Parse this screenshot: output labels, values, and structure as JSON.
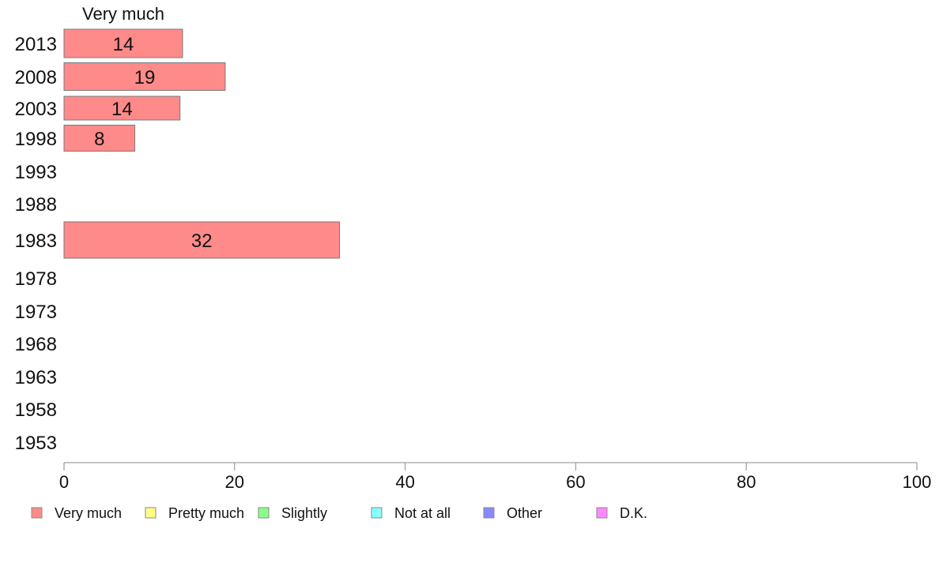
{
  "chart_data": {
    "type": "bar",
    "orientation": "horizontal",
    "stacked": true,
    "category_header": "Very much",
    "categories": [
      "2013",
      "2008",
      "2003",
      "1998",
      "1993",
      "1988",
      "1983",
      "1978",
      "1973",
      "1968",
      "1963",
      "1958",
      "1953"
    ],
    "series": [
      {
        "name": "Very much",
        "color": "#ff8a8a",
        "values": [
          14,
          19,
          14,
          8,
          null,
          null,
          32,
          null,
          null,
          null,
          null,
          null,
          null
        ]
      },
      {
        "name": "Pretty much",
        "color": "#ffff88",
        "values": [
          null,
          null,
          null,
          null,
          null,
          null,
          null,
          null,
          null,
          null,
          null,
          null,
          null
        ]
      },
      {
        "name": "Slightly",
        "color": "#88ff88",
        "values": [
          null,
          null,
          null,
          null,
          null,
          null,
          null,
          null,
          null,
          null,
          null,
          null,
          null
        ]
      },
      {
        "name": "Not at all",
        "color": "#88ffff",
        "values": [
          null,
          null,
          null,
          null,
          null,
          null,
          null,
          null,
          null,
          null,
          null,
          null,
          null
        ]
      },
      {
        "name": "Other",
        "color": "#8888ff",
        "values": [
          null,
          null,
          null,
          null,
          null,
          null,
          null,
          null,
          null,
          null,
          null,
          null,
          null
        ]
      },
      {
        "name": "D.K.",
        "color": "#ff88ff",
        "values": [
          null,
          null,
          null,
          null,
          null,
          null,
          null,
          null,
          null,
          null,
          null,
          null,
          null
        ]
      }
    ],
    "bar_values_exact": [
      13.9,
      18.9,
      13.6,
      8.3,
      null,
      null,
      32.3,
      null,
      null,
      null,
      null,
      null,
      null
    ],
    "xlim": [
      0,
      100
    ],
    "x_ticks": [
      0,
      20,
      40,
      60,
      80,
      100
    ],
    "xlabel": "",
    "ylabel": "",
    "title": "",
    "grid": false,
    "legend_position": "bottom"
  }
}
